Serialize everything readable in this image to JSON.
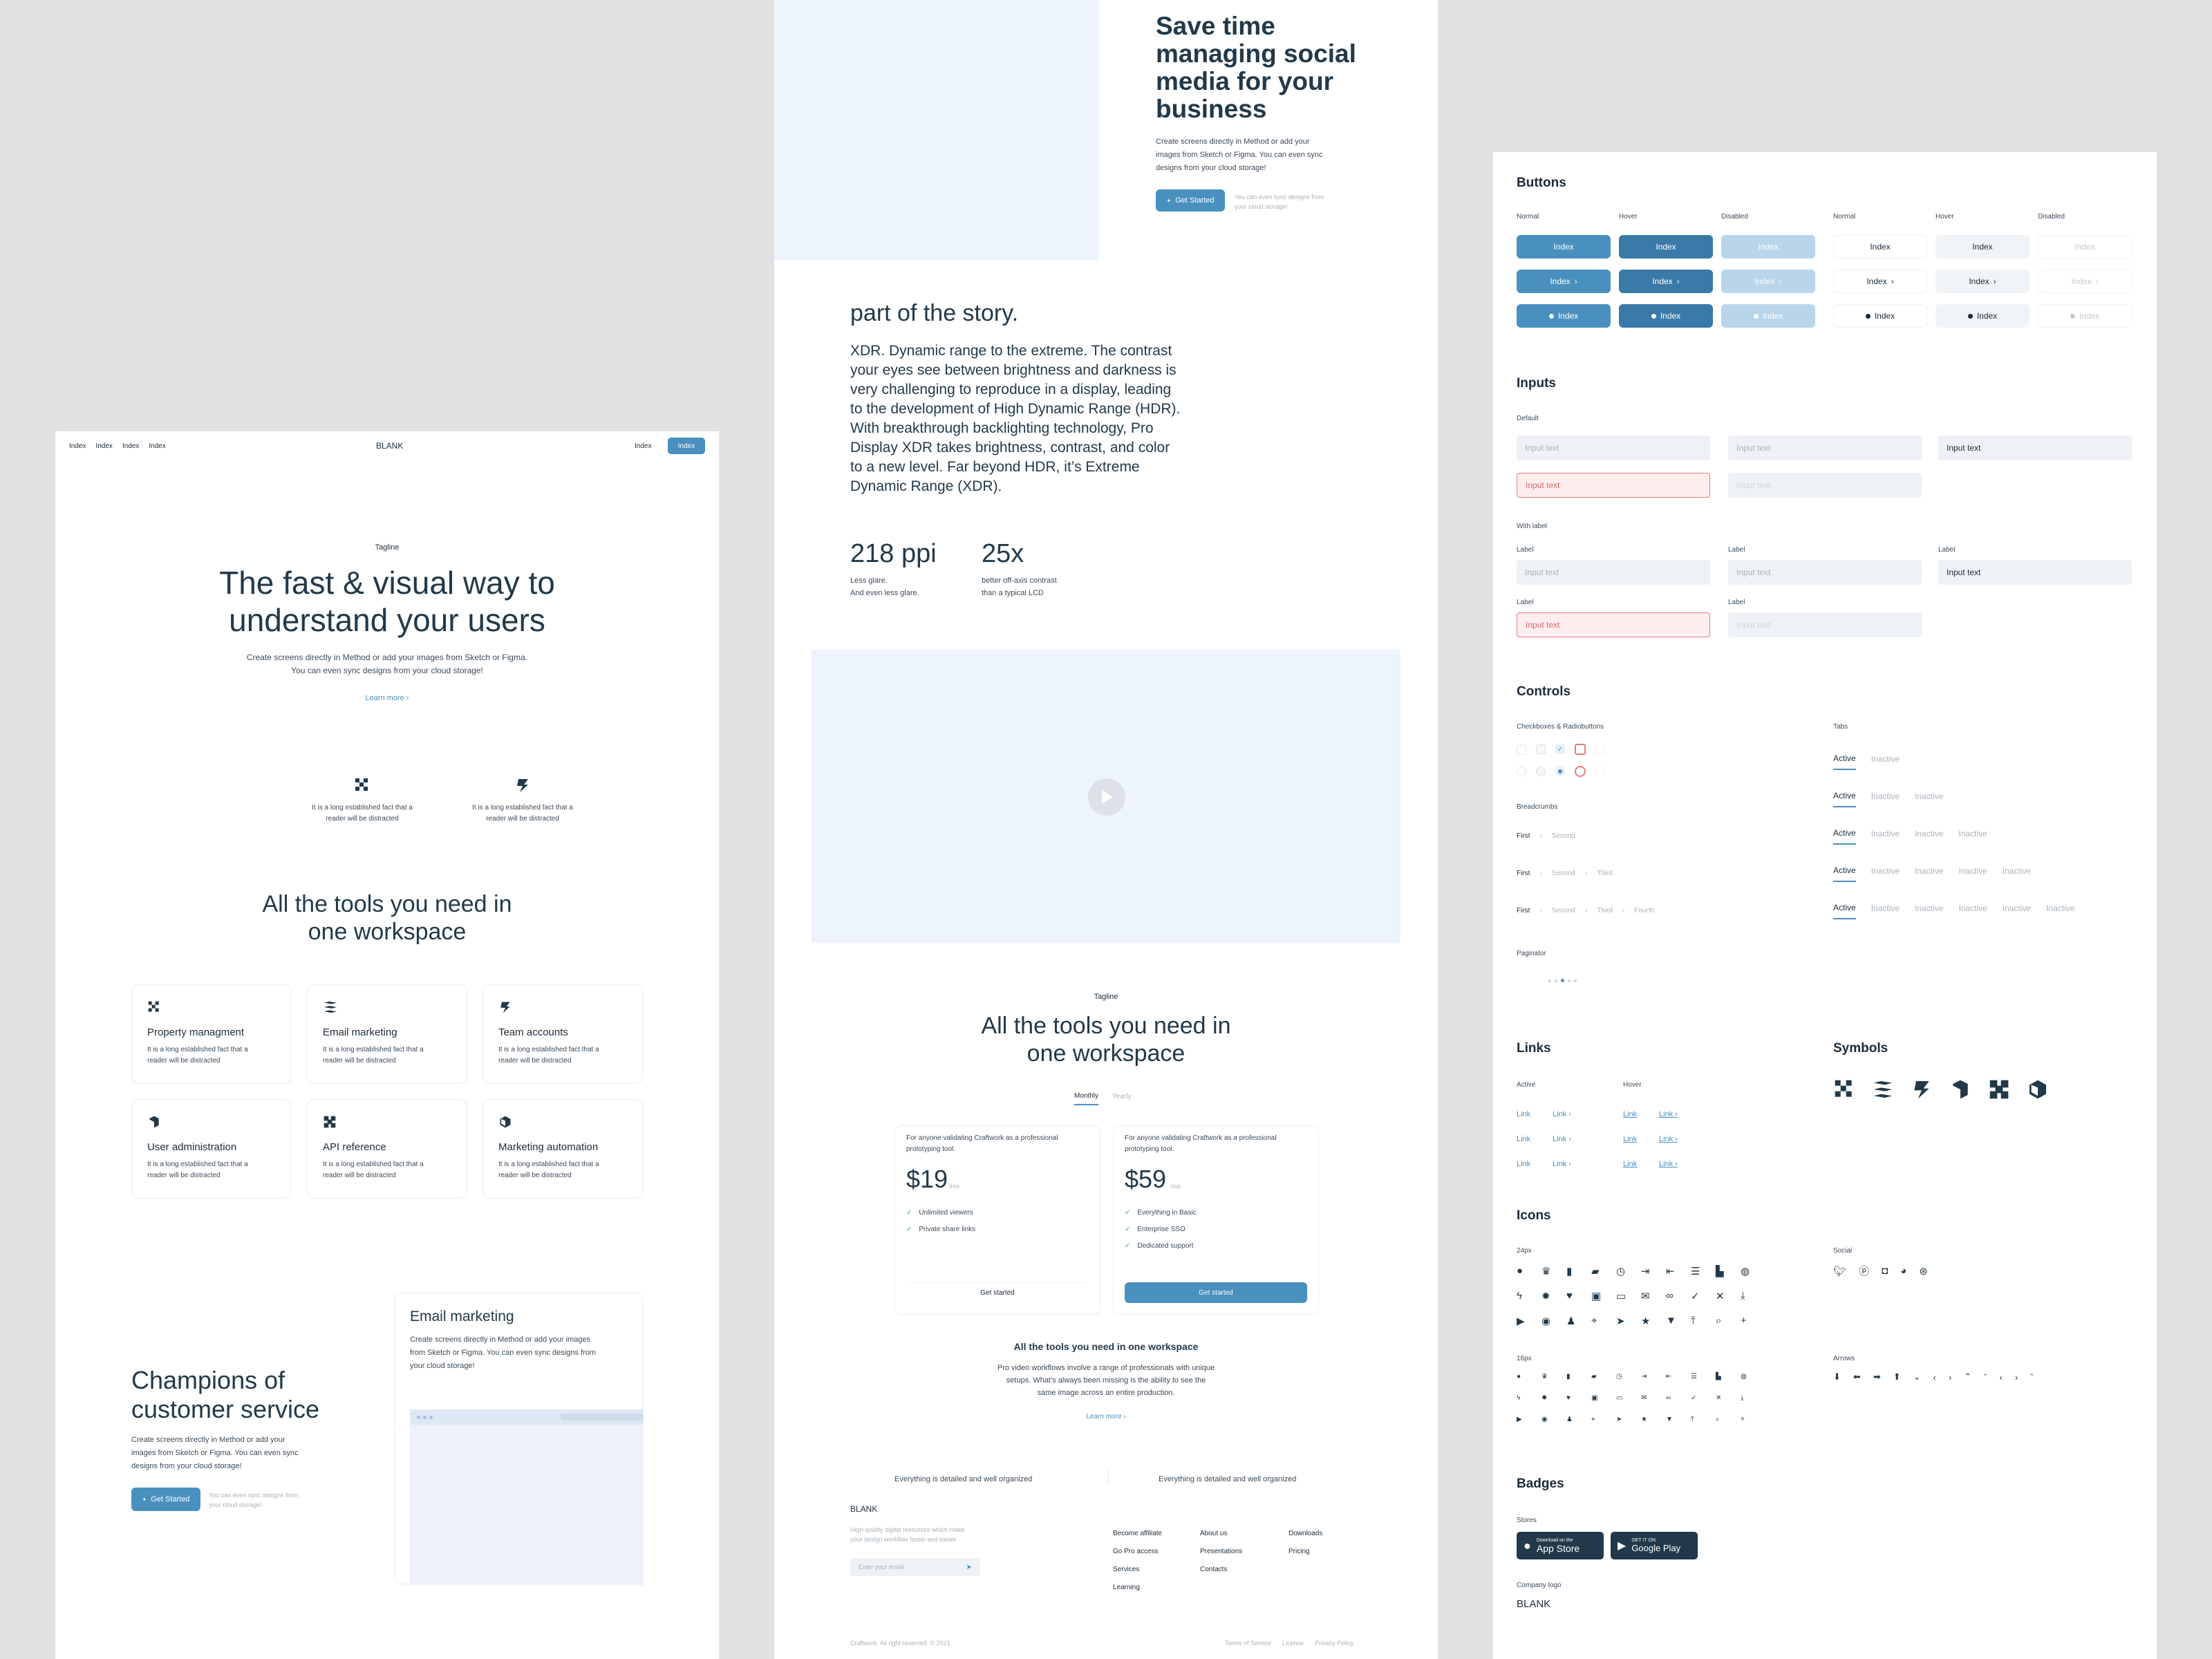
{
  "left": {
    "nav": {
      "links": [
        "Index",
        "Index",
        "Index",
        "Index"
      ],
      "brand": "BLANK",
      "right_link": "Index",
      "right_button": "Index"
    },
    "hero": {
      "tagline": "Tagline",
      "title_line1": "The fast & visual way to",
      "title_line2": "understand your users",
      "desc_line1": "Create screens directly in Method or add your images from Sketch or Figma.",
      "desc_line2": "You can even sync designs from your cloud storage!",
      "learn_more": "Learn more ›"
    },
    "features": [
      {
        "text_line1": "It is a long established fact that a",
        "text_line2": "reader will be distracted"
      },
      {
        "text_line1": "It is a long established fact that a",
        "text_line2": "reader will be distracted"
      }
    ],
    "tools": {
      "title_line1": "All the tools you need in",
      "title_line2": "one workspace",
      "cards": [
        {
          "title": "Property managment",
          "d1": "It is a long established fact that a",
          "d2": "reader will be distracted"
        },
        {
          "title": "Email marketing",
          "d1": "It is a long established fact that a",
          "d2": "reader will be distracted"
        },
        {
          "title": "Team accounts",
          "d1": "It is a long established fact that a",
          "d2": "reader will be distracted"
        },
        {
          "title": "User administration",
          "d1": "It is a long established fact that a",
          "d2": "reader will be distracted"
        },
        {
          "title": "API reference",
          "d1": "It is a long established fact that a",
          "d2": "reader will be distracted"
        },
        {
          "title": "Marketing automation",
          "d1": "It is a long established fact that a",
          "d2": "reader will be distracted"
        }
      ]
    },
    "champions": {
      "title_line1": "Champions of",
      "title_line2": "customer service",
      "d1": "Create screens directly in Method or add your",
      "d2": "images from Sketch or Figma. You can even sync",
      "d3": "designs from your cloud storage!",
      "button": "Get Started",
      "note1": "You can even sync designs from",
      "note2": "your cloud storage!"
    },
    "email_card": {
      "title": "Email marketing",
      "d1": "Create screens directly in Method or add your images",
      "d2": "from Sketch or Figma. You can even sync designs from",
      "d3": "your cloud storage!"
    }
  },
  "middle": {
    "hero": {
      "t1": "Save time",
      "t2": "managing social",
      "t3": "media for your",
      "t4": "business",
      "d1": "Create screens directly in Method or add your",
      "d2": "images from Sketch or Figma. You can even sync",
      "d3": "designs from your cloud storage!",
      "button": "Get Started",
      "note1": "You can even sync designs from",
      "note2": "your cloud storage!"
    },
    "story": {
      "title": "part of the story.",
      "lines": [
        "XDR. Dynamic range to the extreme. The contrast",
        "your eyes see between brightness and darkness is",
        "very challenging to reproduce in a display, leading",
        "to the development of High Dynamic Range (HDR).",
        "With breakthrough backlighting technology, Pro",
        "Display XDR takes brightness, contrast, and color",
        "to a new level. Far beyond HDR, it’s Extreme",
        "Dynamic Range (XDR)."
      ]
    },
    "stats": [
      {
        "value": "218 ppi",
        "l1": "Less glare.",
        "l2": "And even less glare."
      },
      {
        "value": "25x",
        "l1": "better off-axis contrast",
        "l2": "than a typical LCD"
      }
    ],
    "pricing": {
      "tagline": "Tagline",
      "title_line1": "All the tools you need in",
      "title_line2": "one workspace",
      "toggle": [
        "Monthly",
        "Yearly"
      ],
      "plans": [
        {
          "desc1": "For anyone validating Craftwork as a professional",
          "desc2": "prototyping tool.",
          "price": "$19",
          "per": "/mo",
          "features": [
            "Unlimited viewers",
            "Private share links"
          ],
          "button": "Get started"
        },
        {
          "desc1": "For anyone validating Craftwork as a professional",
          "desc2": "prototyping tool.",
          "price": "$59",
          "per": "/mo",
          "features": [
            "Everything in Basic",
            "Enterprise SSO",
            "Dedicated support"
          ],
          "button": "Get started"
        }
      ]
    },
    "workflow": {
      "title": "All the tools you need in one workspace",
      "d1": "Pro video workflows involve a range of professionals with unique",
      "d2": "setups. What’s always been missing is the ability to see the",
      "d3": "same image across an entire production.",
      "link": "Learn more ›"
    },
    "organized": [
      "Everything is detailed and well organized",
      "Everything is detailed and well organized"
    ],
    "footer": {
      "brand": "BLANK",
      "desc1": "High-quality digital resources which make",
      "desc2": "your design workflow faster and easier",
      "email_placeholder": "Enter your email",
      "col1": [
        "Become affiliate",
        "Go Pro access",
        "Services",
        "Learning"
      ],
      "col2": [
        "About us",
        "Presentations",
        "Contacts"
      ],
      "col3": [
        "Downloads",
        "Pricing"
      ],
      "copyright": "Craftwork. All right reserved. © 2021",
      "legal": [
        "Terms of Service",
        "License",
        "Privacy Policy"
      ]
    }
  },
  "right": {
    "buttons": {
      "title": "Buttons",
      "states": [
        "Normal",
        "Hover",
        "Disabled",
        "Normal",
        "Hover",
        "Disabled"
      ],
      "label": "Index"
    },
    "inputs": {
      "title": "Inputs",
      "default_label": "Default",
      "with_label": "With label",
      "placeholder": "Input text",
      "field_label": "Label"
    },
    "controls": {
      "title": "Controls",
      "checkbox_label": "Checkboxes & Radiobuttons",
      "tabs_label": "Tabs",
      "breadcrumbs_label": "Breadcrumbs",
      "crumbs": [
        "First",
        "Second",
        "Third",
        "Fourth"
      ],
      "paginator_label": "Paginator",
      "tab_active": "Active",
      "tab_inactive": "Inactive"
    },
    "links": {
      "title": "Links",
      "active": "Active",
      "hover": "Hover",
      "label": "Link"
    },
    "symbols": {
      "title": "Symbols"
    },
    "icons": {
      "title": "Icons",
      "s24": "24px",
      "s16": "16px",
      "social": "Social",
      "arrows": "Arrows"
    },
    "badges": {
      "title": "Badges",
      "stores": "Stores",
      "apple_small": "Download on the",
      "apple_big": "App Store",
      "google_small": "GET IT ON",
      "google_big": "Google Play",
      "company_logo": "Company logo",
      "logo": "BLANK"
    }
  },
  "colors": {
    "accent": "#4a90bf",
    "accent_dark": "#3a7aa8",
    "text": "#1c2b3a",
    "error": "#e47d7d",
    "bg": "#e1e1e1"
  }
}
